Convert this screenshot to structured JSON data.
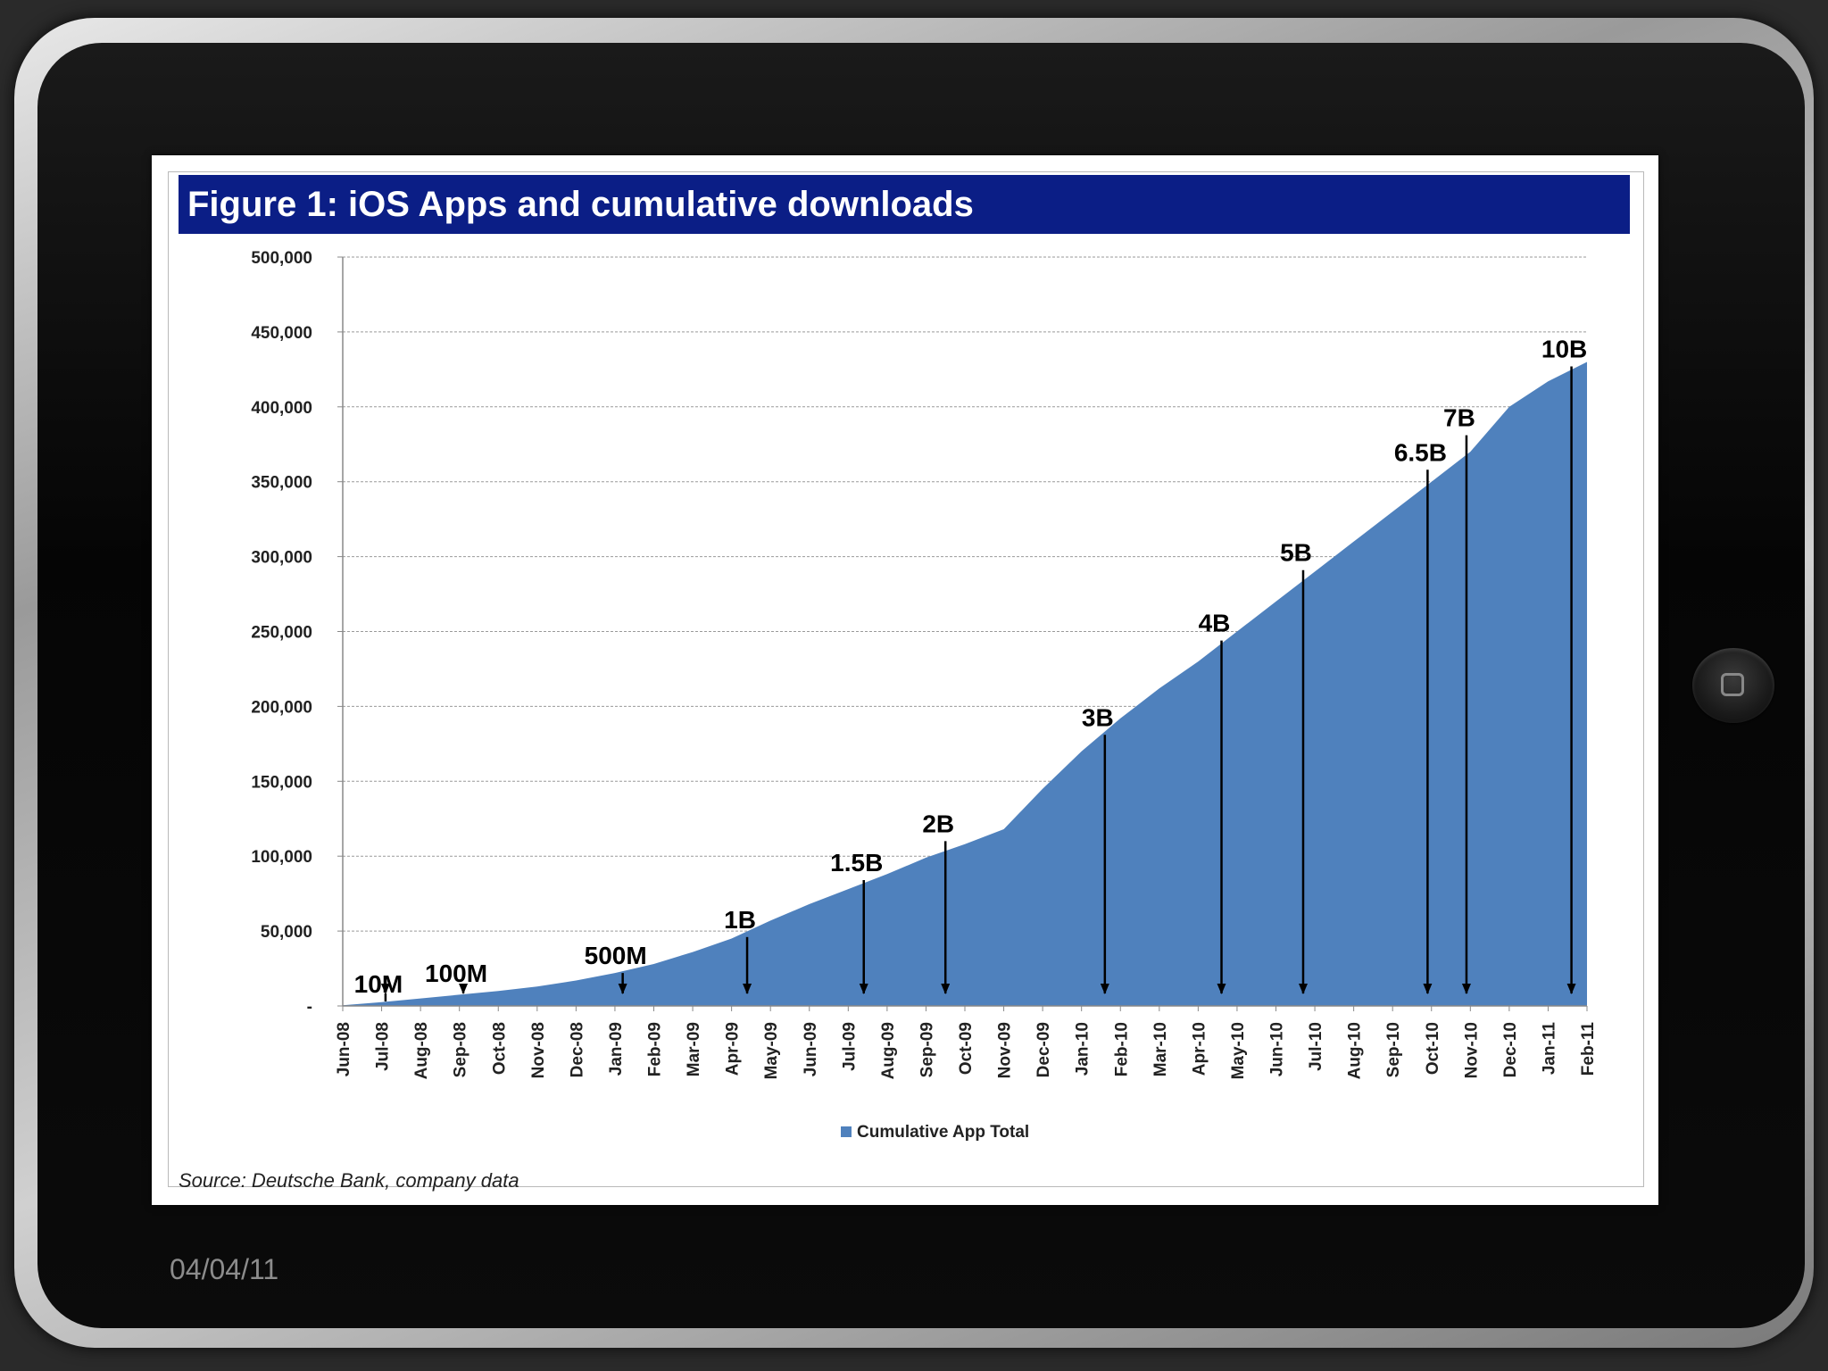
{
  "slide": {
    "date": "04/04/11",
    "source": "Source: Deutsche Bank, company data"
  },
  "chart_data": {
    "type": "area",
    "title": "Figure 1:  iOS Apps and cumulative downloads",
    "xlabel": "",
    "ylabel": "",
    "ylim": [
      0,
      500000
    ],
    "yticks": [
      0,
      50000,
      100000,
      150000,
      200000,
      250000,
      300000,
      350000,
      400000,
      450000,
      500000
    ],
    "ytick_labels": [
      "-",
      "50,000",
      "100,000",
      "150,000",
      "200,000",
      "250,000",
      "300,000",
      "350,000",
      "400,000",
      "450,000",
      "500,000"
    ],
    "grid": true,
    "categories": [
      "Jun-08",
      "Jul-08",
      "Aug-08",
      "Sep-08",
      "Oct-08",
      "Nov-08",
      "Dec-08",
      "Jan-09",
      "Feb-09",
      "Mar-09",
      "Apr-09",
      "May-09",
      "Jun-09",
      "Jul-09",
      "Aug-09",
      "Sep-09",
      "Oct-09",
      "Nov-09",
      "Dec-09",
      "Jan-10",
      "Feb-10",
      "Mar-10",
      "Apr-10",
      "May-10",
      "Jun-10",
      "Jul-10",
      "Aug-10",
      "Sep-10",
      "Oct-10",
      "Nov-10",
      "Dec-10",
      "Jan-11",
      "Feb-11"
    ],
    "series": [
      {
        "name": "Cumulative App Total",
        "color": "#4f81bd",
        "values": [
          500,
          2500,
          5000,
          7500,
          10000,
          13000,
          17000,
          22000,
          28000,
          36000,
          45000,
          57000,
          68000,
          78000,
          88000,
          99000,
          108000,
          118000,
          145000,
          170000,
          192000,
          212000,
          230000,
          250000,
          270000,
          290000,
          310000,
          330000,
          350000,
          370000,
          400000,
          417000,
          430000
        ]
      }
    ],
    "annotations": [
      {
        "label": "10M",
        "x": 1.1,
        "value_top": 3000
      },
      {
        "label": "100M",
        "x": 3.1,
        "value_top": 10000
      },
      {
        "label": "500M",
        "x": 7.2,
        "value_top": 22000
      },
      {
        "label": "1B",
        "x": 10.4,
        "value_top": 46000
      },
      {
        "label": "1.5B",
        "x": 13.4,
        "value_top": 84000
      },
      {
        "label": "2B",
        "x": 15.5,
        "value_top": 110000
      },
      {
        "label": "3B",
        "x": 19.6,
        "value_top": 181000
      },
      {
        "label": "4B",
        "x": 22.6,
        "value_top": 244000
      },
      {
        "label": "5B",
        "x": 24.7,
        "value_top": 291000
      },
      {
        "label": "6.5B",
        "x": 27.9,
        "value_top": 358000
      },
      {
        "label": "7B",
        "x": 28.9,
        "value_top": 381000
      },
      {
        "label": "10B",
        "x": 31.6,
        "value_top": 427000
      }
    ],
    "legend": {
      "position": "bottom",
      "label": "Cumulative App Total"
    }
  }
}
